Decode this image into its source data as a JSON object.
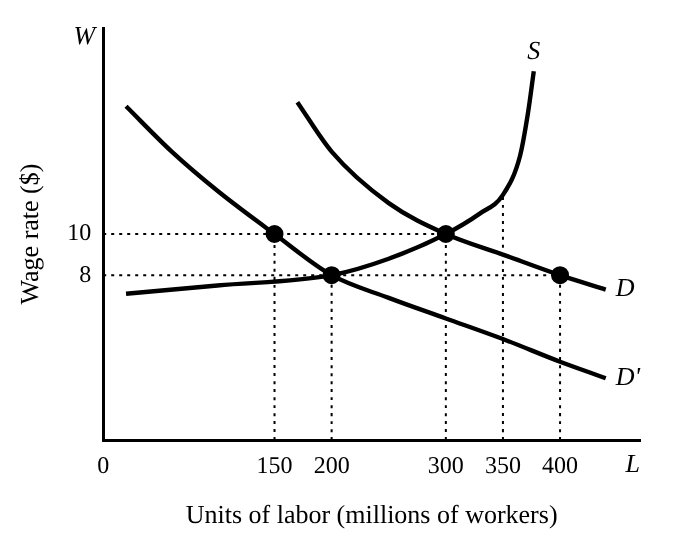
{
  "chart_data": {
    "type": "line",
    "xlabel": "Units of labor (millions of workers)",
    "ylabel": "Wage rate ($)",
    "xlim": [
      0,
      470
    ],
    "ylim": [
      0,
      20
    ],
    "xticks": [
      0,
      150,
      200,
      300,
      350,
      400
    ],
    "yticks": [
      8,
      10
    ],
    "grid": false,
    "legend": false,
    "marker": "none",
    "annotations": [
      "W",
      "L"
    ],
    "series": [
      {
        "name": "S",
        "color": "#000000",
        "x": [
          20,
          100,
          200,
          250,
          300,
          330,
          350,
          365,
          372,
          377
        ],
        "values": [
          7.1,
          7.5,
          8,
          8.8,
          10,
          11,
          11.9,
          13.8,
          15.9,
          17.9
        ]
      },
      {
        "name": "D",
        "color": "#000000",
        "x": [
          170,
          200,
          250,
          300,
          350,
          400,
          440
        ],
        "values": [
          16.4,
          14,
          11.5,
          10,
          9,
          8,
          7.3
        ]
      },
      {
        "name": "D'",
        "color": "#000000",
        "x": [
          20,
          60,
          100,
          150,
          200,
          250,
          300,
          350,
          400,
          440
        ],
        "values": [
          16.2,
          14,
          12.1,
          10,
          8,
          6.9,
          5.9,
          4.9,
          3.8,
          3
        ]
      },
      {
        "type": "scatter",
        "marker": "circle",
        "color": "#000000",
        "x": [
          150,
          200,
          300,
          400
        ],
        "values": [
          10,
          8,
          10,
          8
        ]
      },
      {
        "type": "line",
        "line_style": "dotted",
        "color": "#000000",
        "x": [
          0,
          300
        ],
        "values": [
          10,
          10
        ]
      },
      {
        "type": "line",
        "line_style": "dotted",
        "color": "#000000",
        "x": [
          0,
          400
        ],
        "values": [
          8,
          8
        ]
      },
      {
        "type": "line",
        "line_style": "dotted",
        "color": "#000000",
        "x": [
          150,
          150
        ],
        "values": [
          0,
          10
        ]
      },
      {
        "type": "line",
        "line_style": "dotted",
        "color": "#000000",
        "x": [
          200,
          200
        ],
        "values": [
          0,
          8
        ]
      },
      {
        "type": "line",
        "line_style": "dotted",
        "color": "#000000",
        "x": [
          300,
          300
        ],
        "values": [
          0,
          10
        ]
      },
      {
        "type": "line",
        "line_style": "dotted",
        "color": "#000000",
        "x": [
          350,
          350
        ],
        "values": [
          0,
          11.9
        ]
      },
      {
        "type": "line",
        "line_style": "dotted",
        "color": "#000000",
        "x": [
          400,
          400
        ],
        "values": [
          0,
          8
        ]
      }
    ]
  }
}
